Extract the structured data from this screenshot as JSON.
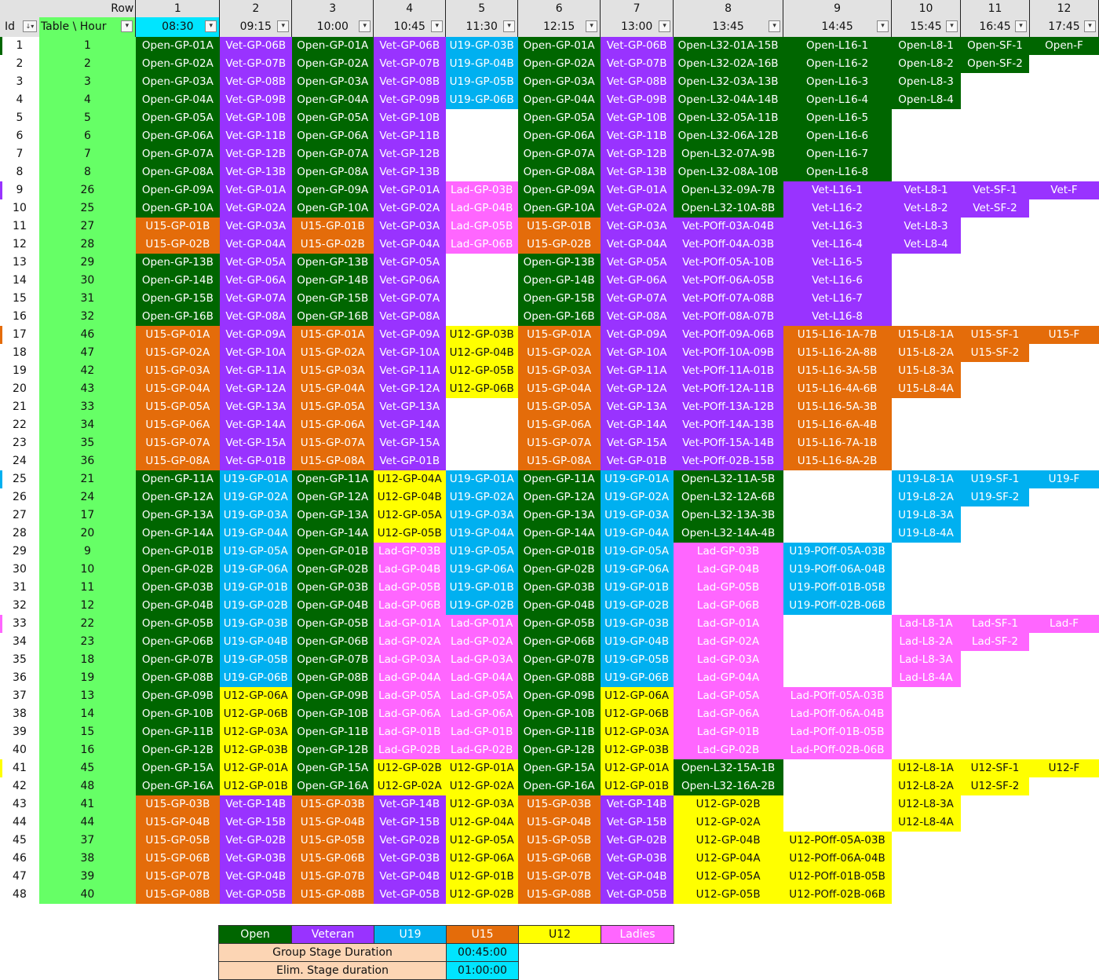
{
  "header": {
    "row_label": "Row",
    "id_label": "Id",
    "table_hour_label": "Table \\ Hour",
    "filter_glyph": "▾",
    "sort_filter_glyph": "↓▾",
    "columns": [
      {
        "num": "1",
        "time": "08:30"
      },
      {
        "num": "2",
        "time": "09:15"
      },
      {
        "num": "3",
        "time": "10:00"
      },
      {
        "num": "4",
        "time": "10:45"
      },
      {
        "num": "5",
        "time": "11:30"
      },
      {
        "num": "6",
        "time": "12:15"
      },
      {
        "num": "7",
        "time": "13:00"
      },
      {
        "num": "8",
        "time": "13:45"
      },
      {
        "num": "9",
        "time": "14:45"
      },
      {
        "num": "10",
        "time": "15:45"
      },
      {
        "num": "11",
        "time": "16:45"
      },
      {
        "num": "12",
        "time": "17:45"
      }
    ]
  },
  "colors": {
    "open": "#006600",
    "vet": "#9933ff",
    "u19": "#00b0f0",
    "u15": "#e46c0a",
    "u12": "#ffff00",
    "lad": "#ff66ff",
    "table_column": "#66ff66",
    "selected_header": "#00e5ff",
    "duration_label": "#fcd5b4"
  },
  "rows": [
    {
      "id": "1",
      "table": "1",
      "cells": [
        "Open-GP-01A",
        "Vet-GP-06B",
        "Open-GP-01A",
        "Vet-GP-06B",
        "U19-GP-03B",
        "Open-GP-01A",
        "Vet-GP-06B",
        "Open-L32-01A-15B",
        "Open-L16-1",
        "Open-L8-1",
        "Open-SF-1",
        "Open-F"
      ]
    },
    {
      "id": "2",
      "table": "2",
      "cells": [
        "Open-GP-02A",
        "Vet-GP-07B",
        "Open-GP-02A",
        "Vet-GP-07B",
        "U19-GP-04B",
        "Open-GP-02A",
        "Vet-GP-07B",
        "Open-L32-02A-16B",
        "Open-L16-2",
        "Open-L8-2",
        "Open-SF-2",
        ""
      ]
    },
    {
      "id": "3",
      "table": "3",
      "cells": [
        "Open-GP-03A",
        "Vet-GP-08B",
        "Open-GP-03A",
        "Vet-GP-08B",
        "U19-GP-05B",
        "Open-GP-03A",
        "Vet-GP-08B",
        "Open-L32-03A-13B",
        "Open-L16-3",
        "Open-L8-3",
        "",
        ""
      ]
    },
    {
      "id": "4",
      "table": "4",
      "cells": [
        "Open-GP-04A",
        "Vet-GP-09B",
        "Open-GP-04A",
        "Vet-GP-09B",
        "U19-GP-06B",
        "Open-GP-04A",
        "Vet-GP-09B",
        "Open-L32-04A-14B",
        "Open-L16-4",
        "Open-L8-4",
        "",
        ""
      ]
    },
    {
      "id": "5",
      "table": "5",
      "cells": [
        "Open-GP-05A",
        "Vet-GP-10B",
        "Open-GP-05A",
        "Vet-GP-10B",
        "",
        "Open-GP-05A",
        "Vet-GP-10B",
        "Open-L32-05A-11B",
        "Open-L16-5",
        "",
        "",
        ""
      ]
    },
    {
      "id": "6",
      "table": "6",
      "cells": [
        "Open-GP-06A",
        "Vet-GP-11B",
        "Open-GP-06A",
        "Vet-GP-11B",
        "",
        "Open-GP-06A",
        "Vet-GP-11B",
        "Open-L32-06A-12B",
        "Open-L16-6",
        "",
        "",
        ""
      ]
    },
    {
      "id": "7",
      "table": "7",
      "cells": [
        "Open-GP-07A",
        "Vet-GP-12B",
        "Open-GP-07A",
        "Vet-GP-12B",
        "",
        "Open-GP-07A",
        "Vet-GP-12B",
        "Open-L32-07A-9B",
        "Open-L16-7",
        "",
        "",
        ""
      ]
    },
    {
      "id": "8",
      "table": "8",
      "cells": [
        "Open-GP-08A",
        "Vet-GP-13B",
        "Open-GP-08A",
        "Vet-GP-13B",
        "",
        "Open-GP-08A",
        "Vet-GP-13B",
        "Open-L32-08A-10B",
        "Open-L16-8",
        "",
        "",
        ""
      ]
    },
    {
      "id": "9",
      "table": "26",
      "cells": [
        "Open-GP-09A",
        "Vet-GP-01A",
        "Open-GP-09A",
        "Vet-GP-01A",
        "Lad-GP-03B",
        "Open-GP-09A",
        "Vet-GP-01A",
        "Open-L32-09A-7B",
        "Vet-L16-1",
        "Vet-L8-1",
        "Vet-SF-1",
        "Vet-F"
      ]
    },
    {
      "id": "10",
      "table": "25",
      "cells": [
        "Open-GP-10A",
        "Vet-GP-02A",
        "Open-GP-10A",
        "Vet-GP-02A",
        "Lad-GP-04B",
        "Open-GP-10A",
        "Vet-GP-02A",
        "Open-L32-10A-8B",
        "Vet-L16-2",
        "Vet-L8-2",
        "Vet-SF-2",
        ""
      ]
    },
    {
      "id": "11",
      "table": "27",
      "cells": [
        "U15-GP-01B",
        "Vet-GP-03A",
        "U15-GP-01B",
        "Vet-GP-03A",
        "Lad-GP-05B",
        "U15-GP-01B",
        "Vet-GP-03A",
        "Vet-POff-03A-04B",
        "Vet-L16-3",
        "Vet-L8-3",
        "",
        ""
      ]
    },
    {
      "id": "12",
      "table": "28",
      "cells": [
        "U15-GP-02B",
        "Vet-GP-04A",
        "U15-GP-02B",
        "Vet-GP-04A",
        "Lad-GP-06B",
        "U15-GP-02B",
        "Vet-GP-04A",
        "Vet-POff-04A-03B",
        "Vet-L16-4",
        "Vet-L8-4",
        "",
        ""
      ]
    },
    {
      "id": "13",
      "table": "29",
      "cells": [
        "Open-GP-13B",
        "Vet-GP-05A",
        "Open-GP-13B",
        "Vet-GP-05A",
        "",
        "Open-GP-13B",
        "Vet-GP-05A",
        "Vet-POff-05A-10B",
        "Vet-L16-5",
        "",
        "",
        ""
      ]
    },
    {
      "id": "14",
      "table": "30",
      "cells": [
        "Open-GP-14B",
        "Vet-GP-06A",
        "Open-GP-14B",
        "Vet-GP-06A",
        "",
        "Open-GP-14B",
        "Vet-GP-06A",
        "Vet-POff-06A-05B",
        "Vet-L16-6",
        "",
        "",
        ""
      ]
    },
    {
      "id": "15",
      "table": "31",
      "cells": [
        "Open-GP-15B",
        "Vet-GP-07A",
        "Open-GP-15B",
        "Vet-GP-07A",
        "",
        "Open-GP-15B",
        "Vet-GP-07A",
        "Vet-POff-07A-08B",
        "Vet-L16-7",
        "",
        "",
        ""
      ]
    },
    {
      "id": "16",
      "table": "32",
      "cells": [
        "Open-GP-16B",
        "Vet-GP-08A",
        "Open-GP-16B",
        "Vet-GP-08A",
        "",
        "Open-GP-16B",
        "Vet-GP-08A",
        "Vet-POff-08A-07B",
        "Vet-L16-8",
        "",
        "",
        ""
      ]
    },
    {
      "id": "17",
      "table": "46",
      "cells": [
        "U15-GP-01A",
        "Vet-GP-09A",
        "U15-GP-01A",
        "Vet-GP-09A",
        "U12-GP-03B",
        "U15-GP-01A",
        "Vet-GP-09A",
        "Vet-POff-09A-06B",
        "U15-L16-1A-7B",
        "U15-L8-1A",
        "U15-SF-1",
        "U15-F"
      ]
    },
    {
      "id": "18",
      "table": "47",
      "cells": [
        "U15-GP-02A",
        "Vet-GP-10A",
        "U15-GP-02A",
        "Vet-GP-10A",
        "U12-GP-04B",
        "U15-GP-02A",
        "Vet-GP-10A",
        "Vet-POff-10A-09B",
        "U15-L16-2A-8B",
        "U15-L8-2A",
        "U15-SF-2",
        ""
      ]
    },
    {
      "id": "19",
      "table": "42",
      "cells": [
        "U15-GP-03A",
        "Vet-GP-11A",
        "U15-GP-03A",
        "Vet-GP-11A",
        "U12-GP-05B",
        "U15-GP-03A",
        "Vet-GP-11A",
        "Vet-POff-11A-01B",
        "U15-L16-3A-5B",
        "U15-L8-3A",
        "",
        ""
      ]
    },
    {
      "id": "20",
      "table": "43",
      "cells": [
        "U15-GP-04A",
        "Vet-GP-12A",
        "U15-GP-04A",
        "Vet-GP-12A",
        "U12-GP-06B",
        "U15-GP-04A",
        "Vet-GP-12A",
        "Vet-POff-12A-11B",
        "U15-L16-4A-6B",
        "U15-L8-4A",
        "",
        ""
      ]
    },
    {
      "id": "21",
      "table": "33",
      "cells": [
        "U15-GP-05A",
        "Vet-GP-13A",
        "U15-GP-05A",
        "Vet-GP-13A",
        "",
        "U15-GP-05A",
        "Vet-GP-13A",
        "Vet-POff-13A-12B",
        "U15-L16-5A-3B",
        "",
        "",
        ""
      ]
    },
    {
      "id": "22",
      "table": "34",
      "cells": [
        "U15-GP-06A",
        "Vet-GP-14A",
        "U15-GP-06A",
        "Vet-GP-14A",
        "",
        "U15-GP-06A",
        "Vet-GP-14A",
        "Vet-POff-14A-13B",
        "U15-L16-6A-4B",
        "",
        "",
        ""
      ]
    },
    {
      "id": "23",
      "table": "35",
      "cells": [
        "U15-GP-07A",
        "Vet-GP-15A",
        "U15-GP-07A",
        "Vet-GP-15A",
        "",
        "U15-GP-07A",
        "Vet-GP-15A",
        "Vet-POff-15A-14B",
        "U15-L16-7A-1B",
        "",
        "",
        ""
      ]
    },
    {
      "id": "24",
      "table": "36",
      "cells": [
        "U15-GP-08A",
        "Vet-GP-01B",
        "U15-GP-08A",
        "Vet-GP-01B",
        "",
        "U15-GP-08A",
        "Vet-GP-01B",
        "Vet-POff-02B-15B",
        "U15-L16-8A-2B",
        "",
        "",
        ""
      ]
    },
    {
      "id": "25",
      "table": "21",
      "cells": [
        "Open-GP-11A",
        "U19-GP-01A",
        "Open-GP-11A",
        "U12-GP-04A",
        "U19-GP-01A",
        "Open-GP-11A",
        "U19-GP-01A",
        "Open-L32-11A-5B",
        "",
        "U19-L8-1A",
        "U19-SF-1",
        "U19-F"
      ]
    },
    {
      "id": "26",
      "table": "24",
      "cells": [
        "Open-GP-12A",
        "U19-GP-02A",
        "Open-GP-12A",
        "U12-GP-04B",
        "U19-GP-02A",
        "Open-GP-12A",
        "U19-GP-02A",
        "Open-L32-12A-6B",
        "",
        "U19-L8-2A",
        "U19-SF-2",
        ""
      ]
    },
    {
      "id": "27",
      "table": "17",
      "cells": [
        "Open-GP-13A",
        "U19-GP-03A",
        "Open-GP-13A",
        "U12-GP-05A",
        "U19-GP-03A",
        "Open-GP-13A",
        "U19-GP-03A",
        "Open-L32-13A-3B",
        "",
        "U19-L8-3A",
        "",
        ""
      ]
    },
    {
      "id": "28",
      "table": "20",
      "cells": [
        "Open-GP-14A",
        "U19-GP-04A",
        "Open-GP-14A",
        "U12-GP-05B",
        "U19-GP-04A",
        "Open-GP-14A",
        "U19-GP-04A",
        "Open-L32-14A-4B",
        "",
        "U19-L8-4A",
        "",
        ""
      ]
    },
    {
      "id": "29",
      "table": "9",
      "cells": [
        "Open-GP-01B",
        "U19-GP-05A",
        "Open-GP-01B",
        "Lad-GP-03B",
        "U19-GP-05A",
        "Open-GP-01B",
        "U19-GP-05A",
        "Lad-GP-03B",
        "U19-POff-05A-03B",
        "",
        "",
        ""
      ]
    },
    {
      "id": "30",
      "table": "10",
      "cells": [
        "Open-GP-02B",
        "U19-GP-06A",
        "Open-GP-02B",
        "Lad-GP-04B",
        "U19-GP-06A",
        "Open-GP-02B",
        "U19-GP-06A",
        "Lad-GP-04B",
        "U19-POff-06A-04B",
        "",
        "",
        ""
      ]
    },
    {
      "id": "31",
      "table": "11",
      "cells": [
        "Open-GP-03B",
        "U19-GP-01B",
        "Open-GP-03B",
        "Lad-GP-05B",
        "U19-GP-01B",
        "Open-GP-03B",
        "U19-GP-01B",
        "Lad-GP-05B",
        "U19-POff-01B-05B",
        "",
        "",
        ""
      ]
    },
    {
      "id": "32",
      "table": "12",
      "cells": [
        "Open-GP-04B",
        "U19-GP-02B",
        "Open-GP-04B",
        "Lad-GP-06B",
        "U19-GP-02B",
        "Open-GP-04B",
        "U19-GP-02B",
        "Lad-GP-06B",
        "U19-POff-02B-06B",
        "",
        "",
        ""
      ]
    },
    {
      "id": "33",
      "table": "22",
      "cells": [
        "Open-GP-05B",
        "U19-GP-03B",
        "Open-GP-05B",
        "Lad-GP-01A",
        "Lad-GP-01A",
        "Open-GP-05B",
        "U19-GP-03B",
        "Lad-GP-01A",
        "",
        "Lad-L8-1A",
        "Lad-SF-1",
        "Lad-F"
      ]
    },
    {
      "id": "34",
      "table": "23",
      "cells": [
        "Open-GP-06B",
        "U19-GP-04B",
        "Open-GP-06B",
        "Lad-GP-02A",
        "Lad-GP-02A",
        "Open-GP-06B",
        "U19-GP-04B",
        "Lad-GP-02A",
        "",
        "Lad-L8-2A",
        "Lad-SF-2",
        ""
      ]
    },
    {
      "id": "35",
      "table": "18",
      "cells": [
        "Open-GP-07B",
        "U19-GP-05B",
        "Open-GP-07B",
        "Lad-GP-03A",
        "Lad-GP-03A",
        "Open-GP-07B",
        "U19-GP-05B",
        "Lad-GP-03A",
        "",
        "Lad-L8-3A",
        "",
        ""
      ]
    },
    {
      "id": "36",
      "table": "19",
      "cells": [
        "Open-GP-08B",
        "U19-GP-06B",
        "Open-GP-08B",
        "Lad-GP-04A",
        "Lad-GP-04A",
        "Open-GP-08B",
        "U19-GP-06B",
        "Lad-GP-04A",
        "",
        "Lad-L8-4A",
        "",
        ""
      ]
    },
    {
      "id": "37",
      "table": "13",
      "cells": [
        "Open-GP-09B",
        "U12-GP-06A",
        "Open-GP-09B",
        "Lad-GP-05A",
        "Lad-GP-05A",
        "Open-GP-09B",
        "U12-GP-06A",
        "Lad-GP-05A",
        "Lad-POff-05A-03B",
        "",
        "",
        ""
      ]
    },
    {
      "id": "38",
      "table": "14",
      "cells": [
        "Open-GP-10B",
        "U12-GP-06B",
        "Open-GP-10B",
        "Lad-GP-06A",
        "Lad-GP-06A",
        "Open-GP-10B",
        "U12-GP-06B",
        "Lad-GP-06A",
        "Lad-POff-06A-04B",
        "",
        "",
        ""
      ]
    },
    {
      "id": "39",
      "table": "15",
      "cells": [
        "Open-GP-11B",
        "U12-GP-03A",
        "Open-GP-11B",
        "Lad-GP-01B",
        "Lad-GP-01B",
        "Open-GP-11B",
        "U12-GP-03A",
        "Lad-GP-01B",
        "Lad-POff-01B-05B",
        "",
        "",
        ""
      ]
    },
    {
      "id": "40",
      "table": "16",
      "cells": [
        "Open-GP-12B",
        "U12-GP-03B",
        "Open-GP-12B",
        "Lad-GP-02B",
        "Lad-GP-02B",
        "Open-GP-12B",
        "U12-GP-03B",
        "Lad-GP-02B",
        "Lad-POff-02B-06B",
        "",
        "",
        ""
      ]
    },
    {
      "id": "41",
      "table": "45",
      "cells": [
        "Open-GP-15A",
        "U12-GP-01A",
        "Open-GP-15A",
        "U12-GP-02B",
        "U12-GP-01A",
        "Open-GP-15A",
        "U12-GP-01A",
        "Open-L32-15A-1B",
        "",
        "U12-L8-1A",
        "U12-SF-1",
        "U12-F"
      ]
    },
    {
      "id": "42",
      "table": "48",
      "cells": [
        "Open-GP-16A",
        "U12-GP-01B",
        "Open-GP-16A",
        "U12-GP-02A",
        "U12-GP-02A",
        "Open-GP-16A",
        "U12-GP-01B",
        "Open-L32-16A-2B",
        "",
        "U12-L8-2A",
        "U12-SF-2",
        ""
      ]
    },
    {
      "id": "43",
      "table": "41",
      "cells": [
        "U15-GP-03B",
        "Vet-GP-14B",
        "U15-GP-03B",
        "Vet-GP-14B",
        "U12-GP-03A",
        "U15-GP-03B",
        "Vet-GP-14B",
        "U12-GP-02B",
        "",
        "U12-L8-3A",
        "",
        ""
      ]
    },
    {
      "id": "44",
      "table": "44",
      "cells": [
        "U15-GP-04B",
        "Vet-GP-15B",
        "U15-GP-04B",
        "Vet-GP-15B",
        "U12-GP-04A",
        "U15-GP-04B",
        "Vet-GP-15B",
        "U12-GP-02A",
        "",
        "U12-L8-4A",
        "",
        ""
      ]
    },
    {
      "id": "45",
      "table": "37",
      "cells": [
        "U15-GP-05B",
        "Vet-GP-02B",
        "U15-GP-05B",
        "Vet-GP-02B",
        "U12-GP-05A",
        "U15-GP-05B",
        "Vet-GP-02B",
        "U12-GP-04B",
        "U12-POff-05A-03B",
        "",
        "",
        ""
      ]
    },
    {
      "id": "46",
      "table": "38",
      "cells": [
        "U15-GP-06B",
        "Vet-GP-03B",
        "U15-GP-06B",
        "Vet-GP-03B",
        "U12-GP-06A",
        "U15-GP-06B",
        "Vet-GP-03B",
        "U12-GP-04A",
        "U12-POff-06A-04B",
        "",
        "",
        ""
      ]
    },
    {
      "id": "47",
      "table": "39",
      "cells": [
        "U15-GP-07B",
        "Vet-GP-04B",
        "U15-GP-07B",
        "Vet-GP-04B",
        "U12-GP-01B",
        "U15-GP-07B",
        "Vet-GP-04B",
        "U12-GP-05A",
        "U12-POff-01B-05B",
        "",
        "",
        ""
      ]
    },
    {
      "id": "48",
      "table": "40",
      "cells": [
        "U15-GP-08B",
        "Vet-GP-05B",
        "U15-GP-08B",
        "Vet-GP-05B",
        "U12-GP-02B",
        "U15-GP-08B",
        "Vet-GP-05B",
        "U12-GP-05B",
        "U12-POff-02B-06B",
        "",
        "",
        ""
      ]
    }
  ],
  "legend": {
    "categories": [
      "Open",
      "Veteran",
      "U19",
      "U15",
      "U12",
      "Ladies"
    ],
    "group_stage_label": "Group Stage Duration",
    "group_stage_value": "00:45:00",
    "elim_stage_label": "Elim. Stage duration",
    "elim_stage_value": "01:00:00"
  }
}
